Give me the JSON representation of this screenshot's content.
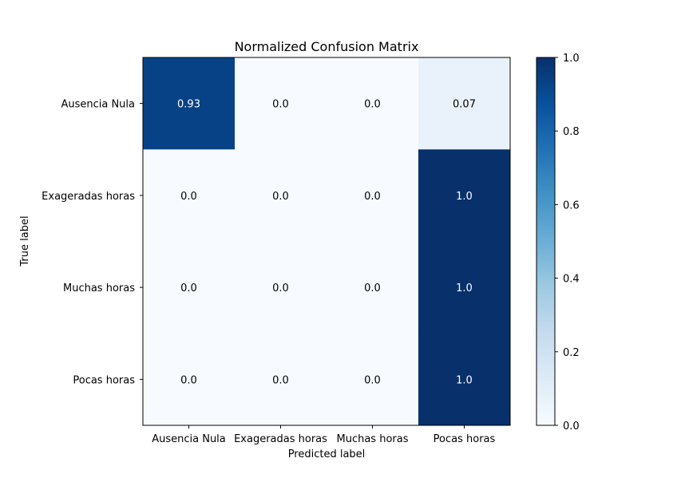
{
  "chart_data": {
    "type": "heatmap",
    "title": "Normalized Confusion Matrix",
    "xlabel": "Predicted label",
    "ylabel": "True label",
    "x_categories": [
      "Ausencia Nula",
      "Exageradas horas",
      "Muchas horas",
      "Pocas horas"
    ],
    "y_categories": [
      "Ausencia Nula",
      "Exageradas horas",
      "Muchas horas",
      "Pocas horas"
    ],
    "values": [
      [
        0.93,
        0.0,
        0.0,
        0.07
      ],
      [
        0.0,
        0.0,
        0.0,
        1.0
      ],
      [
        0.0,
        0.0,
        0.0,
        1.0
      ],
      [
        0.0,
        0.0,
        0.0,
        1.0
      ]
    ],
    "cell_labels": [
      [
        "0.93",
        "0.0",
        "0.0",
        "0.07"
      ],
      [
        "0.0",
        "0.0",
        "0.0",
        "1.0"
      ],
      [
        "0.0",
        "0.0",
        "0.0",
        "1.0"
      ],
      [
        "0.0",
        "0.0",
        "0.0",
        "1.0"
      ]
    ],
    "colormap": "Blues",
    "colorbar": {
      "range": [
        0.0,
        1.0
      ],
      "ticks": [
        0.0,
        0.2,
        0.4,
        0.6,
        0.8,
        1.0
      ],
      "tick_labels": [
        "0.0",
        "0.2",
        "0.4",
        "0.6",
        "0.8",
        "1.0"
      ]
    },
    "grid": false
  }
}
